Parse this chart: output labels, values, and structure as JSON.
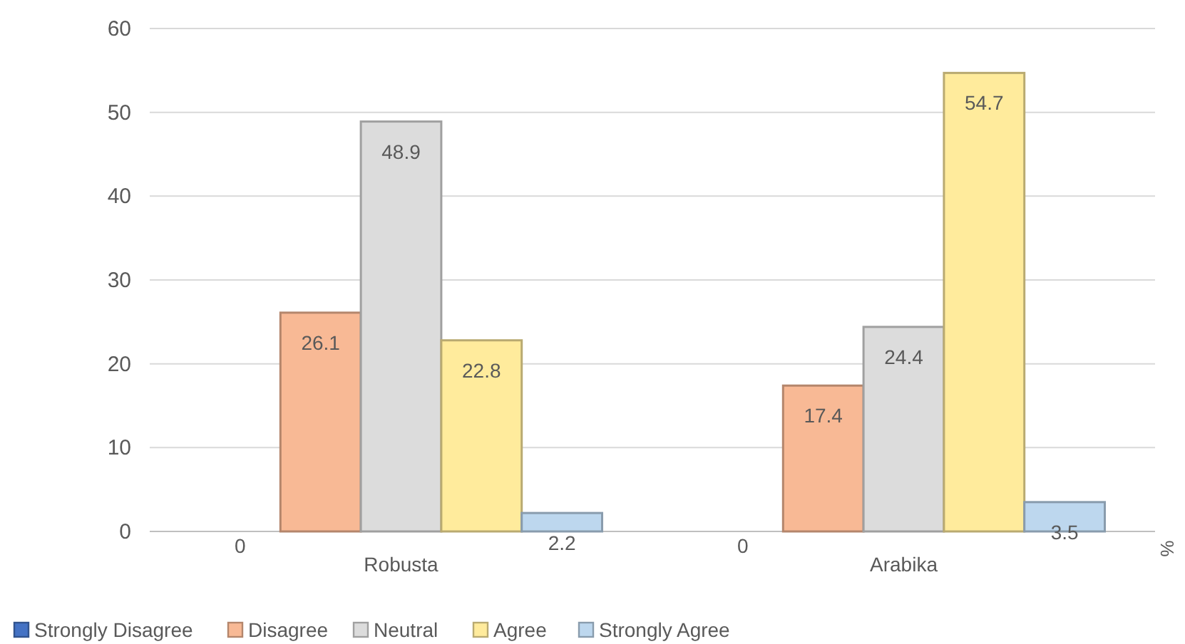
{
  "chart_data": {
    "type": "bar",
    "categories": [
      "Robusta",
      "Arabika"
    ],
    "ylabel": "%",
    "ylim": [
      0,
      60
    ],
    "yticks": [
      0,
      10,
      20,
      30,
      40,
      50,
      60
    ],
    "grid": "y",
    "legend": "bottom",
    "data_labels": true,
    "series": [
      {
        "name": "Strongly Disagree",
        "color": "#4472c4",
        "values": [
          0,
          0
        ]
      },
      {
        "name": "Disagree",
        "color": "#f8b995",
        "values": [
          26.1,
          17.4
        ]
      },
      {
        "name": "Neutral",
        "color": "#dcdcdc",
        "values": [
          48.9,
          24.4
        ]
      },
      {
        "name": "Agree",
        "color": "#ffeb9c",
        "values": [
          22.8,
          54.7
        ]
      },
      {
        "name": "Strongly Agree",
        "color": "#bdd7ee",
        "values": [
          2.2,
          3.5
        ]
      }
    ]
  }
}
